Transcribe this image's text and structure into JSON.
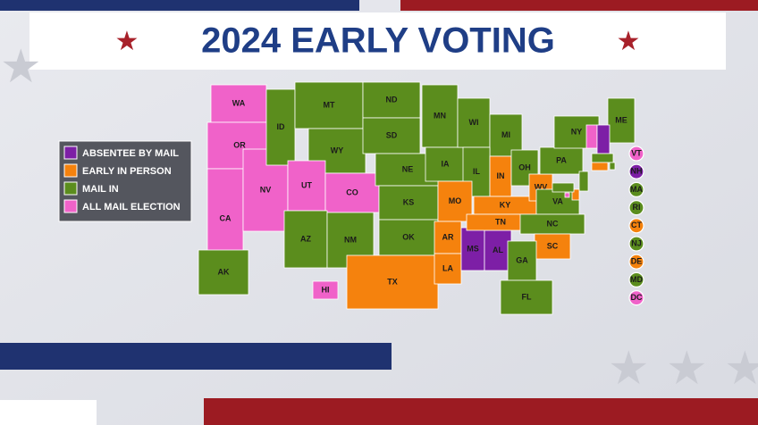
{
  "title": "2024 EARLY VOTING",
  "legend": [
    {
      "label": "ABSENTEE BY MAIL",
      "color": "#7d1fa6"
    },
    {
      "label": "EARLY IN PERSON",
      "color": "#f5820d"
    },
    {
      "label": "MAIL IN",
      "color": "#5b8d1d"
    },
    {
      "label": "ALL MAIL ELECTION",
      "color": "#f062c9"
    }
  ],
  "states": [
    {
      "label": "WA",
      "category": 3
    },
    {
      "label": "OR",
      "category": 3
    },
    {
      "label": "CA",
      "category": 3
    },
    {
      "label": "NV",
      "category": 3
    },
    {
      "label": "ID",
      "category": 2
    },
    {
      "label": "MT",
      "category": 2
    },
    {
      "label": "WY",
      "category": 2
    },
    {
      "label": "UT",
      "category": 3
    },
    {
      "label": "CO",
      "category": 3
    },
    {
      "label": "AZ",
      "category": 2
    },
    {
      "label": "NM",
      "category": 2
    },
    {
      "label": "ND",
      "category": 2
    },
    {
      "label": "SD",
      "category": 2
    },
    {
      "label": "NE",
      "category": 2
    },
    {
      "label": "KS",
      "category": 2
    },
    {
      "label": "OK",
      "category": 2
    },
    {
      "label": "TX",
      "category": 1
    },
    {
      "label": "MN",
      "category": 2
    },
    {
      "label": "IA",
      "category": 2
    },
    {
      "label": "WI",
      "category": 2
    },
    {
      "label": "MI",
      "category": 2
    },
    {
      "label": "IL",
      "category": 2
    },
    {
      "label": "IN",
      "category": 1
    },
    {
      "label": "OH",
      "category": 2
    },
    {
      "label": "MO",
      "category": 1
    },
    {
      "label": "AR",
      "category": 1
    },
    {
      "label": "LA",
      "category": 1
    },
    {
      "label": "MS",
      "category": 0
    },
    {
      "label": "AL",
      "category": 0
    },
    {
      "label": "KY",
      "category": 1
    },
    {
      "label": "TN",
      "category": 1
    },
    {
      "label": "WV",
      "category": 1
    },
    {
      "label": "VA",
      "category": 2
    },
    {
      "label": "NC",
      "category": 2
    },
    {
      "label": "SC",
      "category": 1
    },
    {
      "label": "GA",
      "category": 2
    },
    {
      "label": "FL",
      "category": 2
    },
    {
      "label": "PA",
      "category": 2
    },
    {
      "label": "NY",
      "category": 2
    },
    {
      "label": "ME",
      "category": 2
    },
    {
      "label": "AK",
      "category": 2
    },
    {
      "label": "HI",
      "category": 3
    },
    {
      "label": "VT",
      "category": 3,
      "callout": true
    },
    {
      "label": "NH",
      "category": 0,
      "callout": true
    },
    {
      "label": "MA",
      "category": 2,
      "callout": true
    },
    {
      "label": "RI",
      "category": 2,
      "callout": true
    },
    {
      "label": "CT",
      "category": 1,
      "callout": true
    },
    {
      "label": "NJ",
      "category": 2,
      "callout": true
    },
    {
      "label": "DE",
      "category": 1,
      "callout": true
    },
    {
      "label": "MD",
      "category": 2,
      "callout": true
    },
    {
      "label": "DC",
      "category": 3,
      "callout": true
    }
  ]
}
